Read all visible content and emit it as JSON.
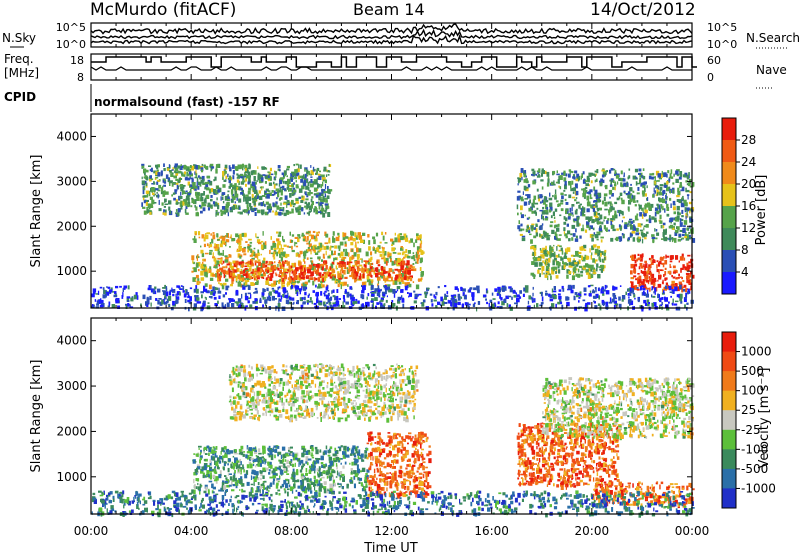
{
  "header": {
    "station": "McMurdo (fitACF)",
    "beam": "Beam 14",
    "date": "14/Oct/2012",
    "cpid_label": "CPID",
    "cpid_value": "normalsound (fast) -157 RF"
  },
  "noise_panel": {
    "left_label": "N.Sky",
    "right_label": "N.Search",
    "ticks_left": [
      "10^5",
      "10^0"
    ],
    "ticks_right": [
      "10^5",
      "10^0"
    ]
  },
  "freq_panel": {
    "left_label_1": "Freq.",
    "left_label_2": "[MHz]",
    "right_label": "Nave",
    "ticks_left": [
      "18",
      "8"
    ],
    "ticks_right": [
      "60",
      "0"
    ]
  },
  "x_axis": {
    "label": "Time UT",
    "ticks": [
      "00:00",
      "04:00",
      "08:00",
      "12:00",
      "16:00",
      "20:00",
      "00:00"
    ]
  },
  "chart_data": [
    {
      "type": "heatmap",
      "title": "",
      "xlabel": "Time UT",
      "ylabel": "Slant Range [km]",
      "ylim": [
        180,
        4500
      ],
      "yticks": [
        "1000",
        "2000",
        "3000",
        "4000"
      ],
      "colorbar_label": "Power [dB]",
      "colorbar_ticks": [
        "4",
        "8",
        "12",
        "16",
        "20",
        "24",
        "28"
      ],
      "colorbar_colors": [
        "#1a1aff",
        "#2a4fb5",
        "#3f8a5a",
        "#56a34a",
        "#e6c21a",
        "#f08a1a",
        "#f05a14",
        "#e81c0c"
      ],
      "regions": [
        {
          "t0": 4.0,
          "t1": 13.2,
          "r0": 700,
          "r1": 1900,
          "level": 0.55
        },
        {
          "t0": 5.0,
          "t1": 12.8,
          "r0": 850,
          "r1": 1250,
          "level": 0.85
        },
        {
          "t0": 2.0,
          "t1": 9.5,
          "r0": 2300,
          "r1": 3400,
          "level": 0.35
        },
        {
          "t0": 17.0,
          "t1": 24.0,
          "r0": 1700,
          "r1": 3300,
          "level": 0.35
        },
        {
          "t0": 21.5,
          "t1": 24.0,
          "r0": 600,
          "r1": 1400,
          "level": 0.9
        },
        {
          "t0": 17.5,
          "t1": 20.5,
          "r0": 900,
          "r1": 1600,
          "level": 0.45
        },
        {
          "t0": 0.0,
          "t1": 24.0,
          "r0": 200,
          "r1": 700,
          "level": 0.15
        }
      ]
    },
    {
      "type": "heatmap",
      "title": "",
      "xlabel": "Time UT",
      "ylabel": "Slant Range [km]",
      "ylim": [
        180,
        4500
      ],
      "yticks": [
        "1000",
        "2000",
        "3000",
        "4000"
      ],
      "colorbar_label": "Velocity [m s⁻¹]",
      "colorbar_ticks": [
        "1000",
        "500",
        "100",
        "25",
        "-25",
        "-100",
        "-500",
        "-1000"
      ],
      "colorbar_colors": [
        "#2030c8",
        "#2a6fa8",
        "#3a8a5c",
        "#5cbf3a",
        "#c8c8c0",
        "#f0b020",
        "#f07a1a",
        "#f04a14",
        "#e81c0c"
      ],
      "regions": [
        {
          "t0": 4.0,
          "t1": 11.0,
          "r0": 700,
          "r1": 1700,
          "level": 0.3
        },
        {
          "t0": 11.0,
          "t1": 13.5,
          "r0": 600,
          "r1": 2000,
          "level": 0.78
        },
        {
          "t0": 5.5,
          "t1": 13.0,
          "r0": 2300,
          "r1": 3500,
          "level": 0.5
        },
        {
          "t0": 17.0,
          "t1": 21.0,
          "r0": 800,
          "r1": 2200,
          "level": 0.78
        },
        {
          "t0": 20.0,
          "t1": 24.0,
          "r0": 400,
          "r1": 900,
          "level": 0.75
        },
        {
          "t0": 18.0,
          "t1": 24.0,
          "r0": 1900,
          "r1": 3200,
          "level": 0.5
        },
        {
          "t0": 0.0,
          "t1": 24.0,
          "r0": 200,
          "r1": 700,
          "level": 0.2
        }
      ]
    }
  ]
}
